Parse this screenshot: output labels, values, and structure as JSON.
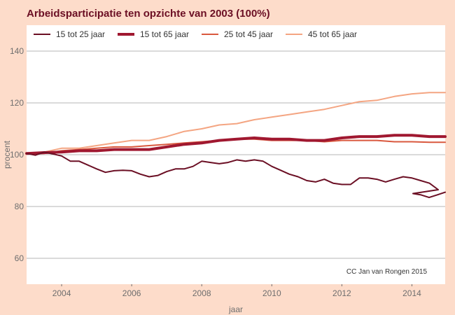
{
  "chart_data": {
    "type": "line",
    "title": "Arbeidsparticipatie ten opzichte van 2003 (100%)",
    "xlabel": "jaar",
    "ylabel": "procent",
    "xlim": [
      2003.0,
      2014.95
    ],
    "ylim": [
      50,
      150
    ],
    "x_ticks": [
      2004,
      2006,
      2008,
      2010,
      2012,
      2014
    ],
    "y_ticks": [
      60,
      80,
      100,
      120,
      140
    ],
    "grid": true,
    "legend_position": "top",
    "annotation": "CC Jan van Rongen 2015",
    "series": [
      {
        "name": "15 tot 25 jaar",
        "color": "#6b0f24",
        "width": 2,
        "points": [
          [
            2003.0,
            100.5
          ],
          [
            2003.25,
            99.8
          ],
          [
            2003.5,
            101.0
          ],
          [
            2003.75,
            100.3
          ],
          [
            2004.0,
            99.5
          ],
          [
            2004.25,
            97.5
          ],
          [
            2004.5,
            97.5
          ],
          [
            2004.75,
            96.0
          ],
          [
            2005.0,
            94.5
          ],
          [
            2005.25,
            93.2
          ],
          [
            2005.5,
            93.8
          ],
          [
            2005.75,
            94.0
          ],
          [
            2006.0,
            93.8
          ],
          [
            2006.25,
            92.5
          ],
          [
            2006.5,
            91.5
          ],
          [
            2006.75,
            92.0
          ],
          [
            2007.0,
            93.5
          ],
          [
            2007.25,
            94.5
          ],
          [
            2007.5,
            94.5
          ],
          [
            2007.75,
            95.5
          ],
          [
            2008.0,
            97.5
          ],
          [
            2008.25,
            97.0
          ],
          [
            2008.5,
            96.5
          ],
          [
            2008.75,
            97.0
          ],
          [
            2009.0,
            98.0
          ],
          [
            2009.25,
            97.5
          ],
          [
            2009.5,
            98.0
          ],
          [
            2009.75,
            97.5
          ],
          [
            2010.0,
            95.5
          ],
          [
            2010.25,
            94.0
          ],
          [
            2010.5,
            92.5
          ],
          [
            2010.75,
            91.5
          ],
          [
            2011.0,
            90.0
          ],
          [
            2011.25,
            89.5
          ],
          [
            2011.5,
            90.5
          ],
          [
            2011.75,
            89.0
          ],
          [
            2012.0,
            88.5
          ],
          [
            2012.25,
            88.5
          ],
          [
            2012.5,
            91.0
          ],
          [
            2012.75,
            91.0
          ],
          [
            2013.0,
            90.5
          ],
          [
            2013.25,
            89.5
          ],
          [
            2013.5,
            90.5
          ],
          [
            2013.75,
            91.5
          ],
          [
            2014.0,
            91.0
          ],
          [
            2014.25,
            90.0
          ],
          [
            2014.5,
            89.0
          ],
          [
            2014.75,
            86.5
          ],
          [
            2015.0,
            85.0
          ],
          [
            2015.25,
            84.5
          ],
          [
            2015.5,
            83.5
          ],
          [
            2015.75,
            84.5
          ],
          [
            2016.0,
            85.5
          ]
        ]
      },
      {
        "name": "15 tot 65 jaar",
        "color": "#a01830",
        "width": 4,
        "points": [
          [
            2003.0,
            100.5
          ],
          [
            2003.5,
            100.8
          ],
          [
            2004.0,
            101.0
          ],
          [
            2004.5,
            101.5
          ],
          [
            2005.0,
            101.5
          ],
          [
            2005.5,
            102.0
          ],
          [
            2006.0,
            102.0
          ],
          [
            2006.5,
            102.0
          ],
          [
            2007.0,
            103.0
          ],
          [
            2007.5,
            104.0
          ],
          [
            2008.0,
            104.5
          ],
          [
            2008.5,
            105.5
          ],
          [
            2009.0,
            106.0
          ],
          [
            2009.5,
            106.5
          ],
          [
            2010.0,
            106.0
          ],
          [
            2010.5,
            106.0
          ],
          [
            2011.0,
            105.5
          ],
          [
            2011.5,
            105.5
          ],
          [
            2012.0,
            106.5
          ],
          [
            2012.5,
            107.0
          ],
          [
            2013.0,
            107.0
          ],
          [
            2013.5,
            107.5
          ],
          [
            2014.0,
            107.5
          ],
          [
            2014.5,
            107.0
          ],
          [
            2014.95,
            107.0
          ]
        ]
      },
      {
        "name": "25 tot 45 jaar",
        "color": "#d9583e",
        "width": 2,
        "points": [
          [
            2003.0,
            100.5
          ],
          [
            2003.5,
            100.5
          ],
          [
            2004.0,
            101.5
          ],
          [
            2004.5,
            102.0
          ],
          [
            2005.0,
            102.5
          ],
          [
            2005.5,
            103.0
          ],
          [
            2006.0,
            103.0
          ],
          [
            2006.5,
            103.5
          ],
          [
            2007.0,
            104.0
          ],
          [
            2007.5,
            104.5
          ],
          [
            2008.0,
            105.0
          ],
          [
            2008.5,
            105.5
          ],
          [
            2009.0,
            106.0
          ],
          [
            2009.5,
            106.0
          ],
          [
            2010.0,
            105.5
          ],
          [
            2010.5,
            105.5
          ],
          [
            2011.0,
            105.5
          ],
          [
            2011.5,
            105.0
          ],
          [
            2012.0,
            105.5
          ],
          [
            2012.5,
            105.5
          ],
          [
            2013.0,
            105.5
          ],
          [
            2013.5,
            105.0
          ],
          [
            2014.0,
            105.0
          ],
          [
            2014.5,
            104.8
          ],
          [
            2014.95,
            104.8
          ]
        ]
      },
      {
        "name": "45 tot 65 jaar",
        "color": "#f4a582",
        "width": 2,
        "points": [
          [
            2003.0,
            100.5
          ],
          [
            2003.5,
            101.0
          ],
          [
            2004.0,
            102.5
          ],
          [
            2004.5,
            102.5
          ],
          [
            2005.0,
            103.5
          ],
          [
            2005.5,
            104.5
          ],
          [
            2006.0,
            105.5
          ],
          [
            2006.5,
            105.5
          ],
          [
            2007.0,
            107.0
          ],
          [
            2007.5,
            109.0
          ],
          [
            2008.0,
            110.0
          ],
          [
            2008.5,
            111.5
          ],
          [
            2009.0,
            112.0
          ],
          [
            2009.5,
            113.5
          ],
          [
            2010.0,
            114.5
          ],
          [
            2010.5,
            115.5
          ],
          [
            2011.0,
            116.5
          ],
          [
            2011.5,
            117.5
          ],
          [
            2012.0,
            119.0
          ],
          [
            2012.5,
            120.5
          ],
          [
            2013.0,
            121.0
          ],
          [
            2013.5,
            122.5
          ],
          [
            2014.0,
            123.5
          ],
          [
            2014.5,
            124.0
          ],
          [
            2014.95,
            124.0
          ]
        ]
      }
    ]
  }
}
